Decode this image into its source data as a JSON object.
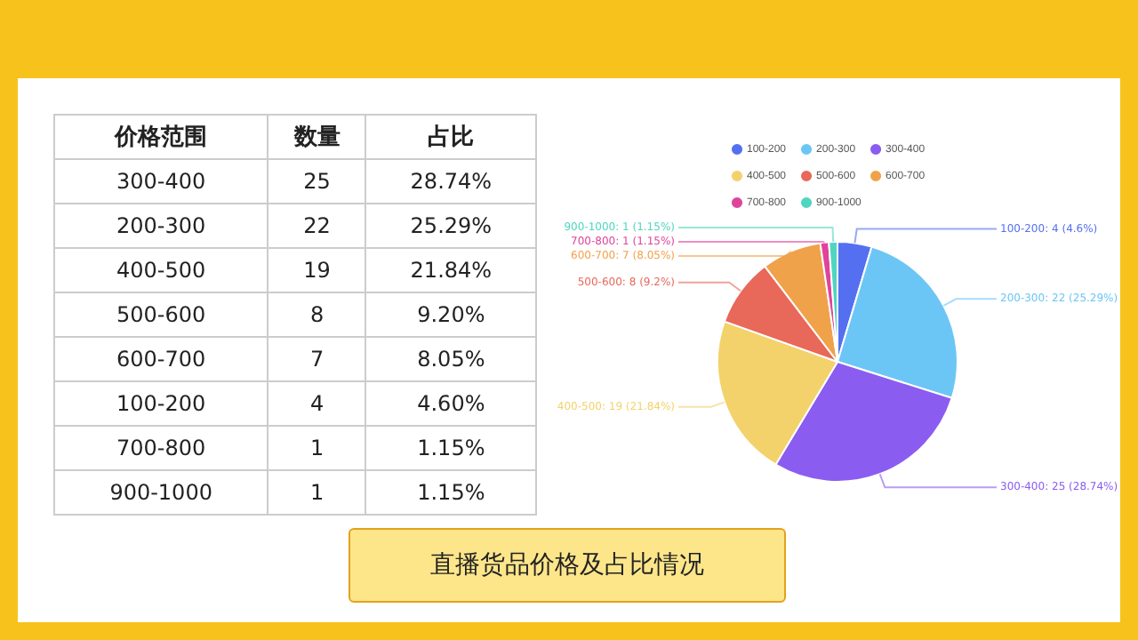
{
  "chart_data": [
    {
      "type": "other",
      "categories": [
        "价格范围",
        "数量",
        "占比"
      ],
      "annotations": [
        "300-400",
        "25",
        "28.74%",
        "200-300",
        "22",
        "25.29%",
        "400-500",
        "19",
        "21.84%",
        "500-600",
        "8",
        "9.20%",
        "600-700",
        "7",
        "8.05%",
        "100-200",
        "4",
        "4.60%",
        "700-800",
        "1",
        "1.15%",
        "900-1000",
        "1",
        "1.15%"
      ]
    },
    {
      "type": "pie",
      "title": "直播货品价格及占比情况",
      "categories": [
        "100-200",
        "200-300",
        "300-400",
        "400-500",
        "500-600",
        "600-700",
        "700-800",
        "900-1000"
      ],
      "values": [
        4,
        22,
        25,
        19,
        8,
        7,
        1,
        1
      ],
      "colors": [
        "#5470f0",
        "#6cc6f5",
        "#8b5cf0",
        "#f3d26b",
        "#e8685a",
        "#f0a24a",
        "#e0449a",
        "#4fd6c0"
      ],
      "value_labels": [
        "100-200: 4 (4.6%)",
        "200-300: 22 (25.29%)",
        "300-400: 25 (28.74%)",
        "400-500: 19 (21.84%)",
        "500-600: 8 (9.2%)",
        "600-700: 7 (8.05%)",
        "700-800: 1 (1.15%)",
        "900-1000: 1 (1.15%)"
      ],
      "legend": "top"
    }
  ]
}
